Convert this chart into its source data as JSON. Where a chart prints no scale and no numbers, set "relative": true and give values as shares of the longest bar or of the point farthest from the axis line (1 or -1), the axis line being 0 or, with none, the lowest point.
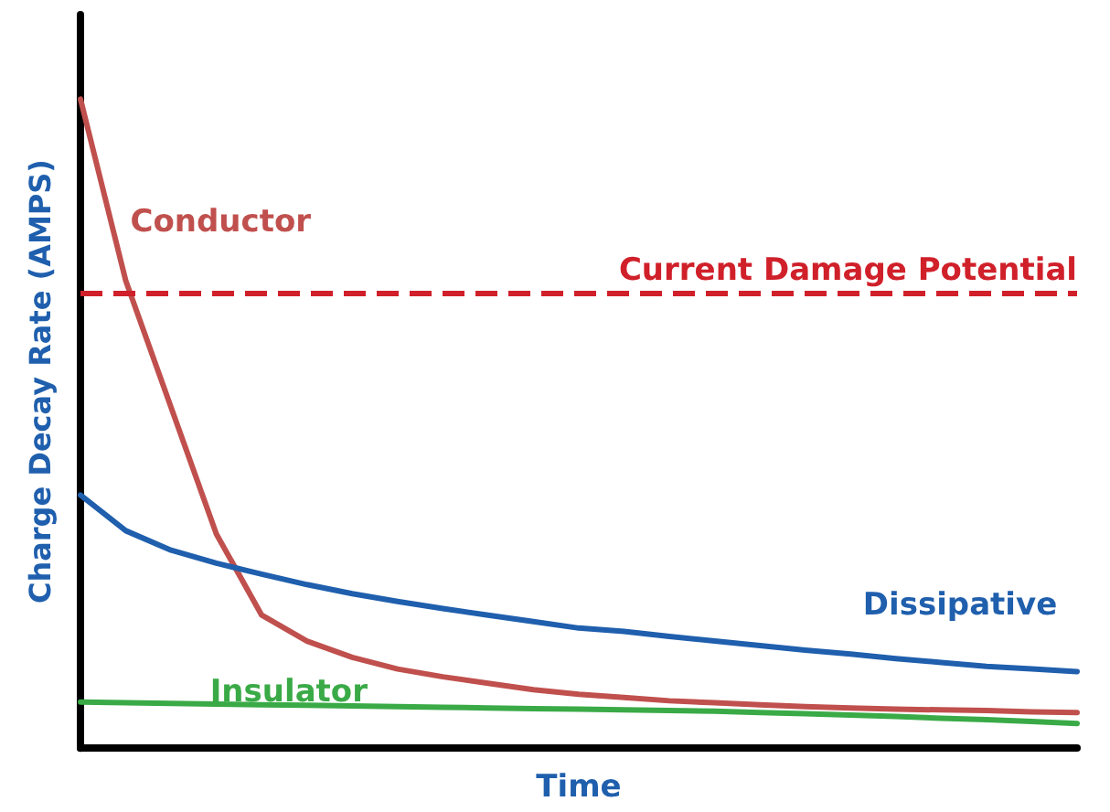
{
  "chart_data": {
    "type": "line",
    "relative": true,
    "xlabel": "Time",
    "ylabel": "Charge Decay Rate (AMPS)",
    "categories": [
      null,
      null,
      null,
      null,
      null,
      null,
      null,
      null,
      null,
      null,
      null,
      null,
      null,
      null,
      null,
      null,
      null,
      null,
      null,
      null,
      null,
      null,
      null
    ],
    "grid": false,
    "legend": false,
    "marker": "none",
    "line_style": "solid",
    "series": [
      {
        "name": "Conductor",
        "color": "#c0504d",
        "values": [
          1.0,
          0.72,
          0.525,
          0.33,
          0.205,
          0.165,
          0.14,
          0.122,
          0.11,
          0.1,
          0.09,
          0.083,
          0.078,
          0.073,
          0.07,
          0.067,
          0.064,
          0.062,
          0.06,
          0.059,
          0.058,
          0.056,
          0.055
        ]
      },
      {
        "name": "Dissipative",
        "color": "#1f5fad",
        "values": [
          0.39,
          0.335,
          0.305,
          0.285,
          0.268,
          0.252,
          0.238,
          0.226,
          0.215,
          0.205,
          0.195,
          0.185,
          0.18,
          0.172,
          0.165,
          0.158,
          0.151,
          0.145,
          0.138,
          0.132,
          0.126,
          0.122,
          0.118
        ]
      },
      {
        "name": "Insulator",
        "color": "#3aaa47",
        "values": [
          0.071,
          0.07,
          0.069,
          0.068,
          0.067,
          0.066,
          0.065,
          0.064,
          0.063,
          0.062,
          0.061,
          0.06,
          0.059,
          0.058,
          0.057,
          0.055,
          0.053,
          0.051,
          0.049,
          0.046,
          0.044,
          0.041,
          0.038
        ]
      }
    ],
    "ref_lines": [
      {
        "axis": "y",
        "value": 0.703,
        "label": "Current Damage Potential",
        "color": "#d0202a",
        "line_style": "dashed"
      }
    ]
  }
}
